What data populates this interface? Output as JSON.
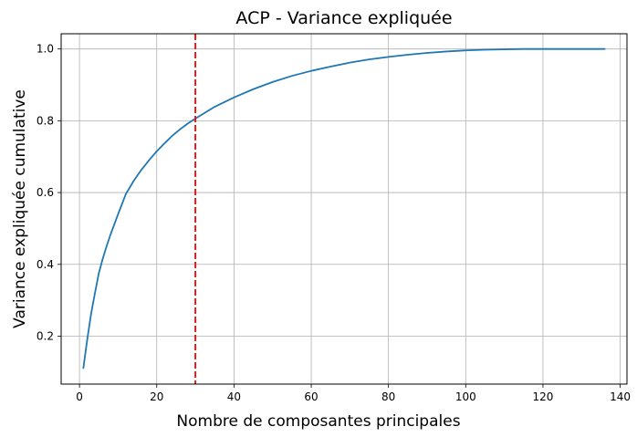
{
  "chart_data": {
    "type": "line",
    "title": "ACP - Variance expliquée",
    "xlabel": "Nombre de composantes principales",
    "ylabel": "Variance expliquée cumulative",
    "xlim": [
      -4.75,
      141.75
    ],
    "ylim": [
      0.0665,
      1.0424
    ],
    "xticks": [
      0,
      20,
      40,
      60,
      80,
      100,
      120,
      140
    ],
    "yticks": [
      0.2,
      0.4,
      0.6,
      0.8,
      1.0
    ],
    "xtick_labels": [
      "0",
      "20",
      "40",
      "60",
      "80",
      "100",
      "120",
      "140"
    ],
    "ytick_labels": [
      "0.2",
      "0.4",
      "0.6",
      "0.8",
      "1.0"
    ],
    "grid": true,
    "colors": {
      "line": "#1f77b4",
      "threshold": "#ff0000",
      "grid": "#b0b0b0"
    },
    "series": [
      {
        "x": [
          1,
          2,
          3,
          4,
          5,
          6,
          7,
          8,
          10,
          12,
          14,
          16,
          18,
          20,
          22,
          24,
          26,
          28,
          30,
          35,
          40,
          45,
          50,
          55,
          60,
          65,
          70,
          75,
          80,
          85,
          90,
          95,
          100,
          105,
          110,
          115,
          120,
          125,
          130,
          136
        ],
        "y": [
          0.111,
          0.19,
          0.262,
          0.32,
          0.375,
          0.415,
          0.45,
          0.482,
          0.54,
          0.596,
          0.632,
          0.663,
          0.69,
          0.715,
          0.737,
          0.758,
          0.776,
          0.792,
          0.806,
          0.839,
          0.865,
          0.888,
          0.908,
          0.925,
          0.939,
          0.951,
          0.962,
          0.971,
          0.978,
          0.984,
          0.989,
          0.993,
          0.996,
          0.998,
          0.999,
          1.0,
          1.0,
          1.0,
          1.0,
          1.0
        ]
      }
    ],
    "vlines": [
      {
        "x": 30,
        "style": "dashed"
      }
    ]
  }
}
